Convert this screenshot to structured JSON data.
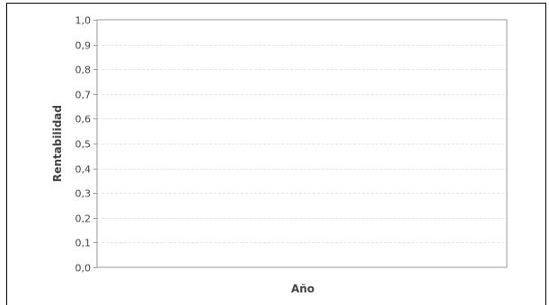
{
  "chart_data": {
    "type": "line",
    "title": "",
    "xlabel": "Año",
    "ylabel": "Rentabilidad",
    "ylim": [
      0,
      1
    ],
    "y_ticks": [
      "0,0",
      "0,1",
      "0,2",
      "0,3",
      "0,4",
      "0,5",
      "0,6",
      "0,7",
      "0,8",
      "0,9",
      "1,0"
    ],
    "x_ticks": [],
    "series": [],
    "grid": true,
    "legend": "none"
  },
  "colors": {
    "plot_border": "#999999",
    "grid": "#e3e3e3",
    "text": "#444444"
  }
}
